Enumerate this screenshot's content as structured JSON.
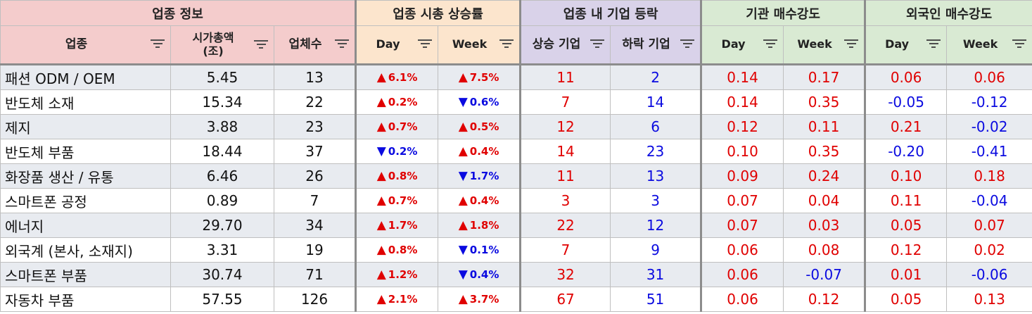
{
  "groups": {
    "info": "업종 정보",
    "cap": "업종 시총 상승률",
    "rise": "업종 내 기업 등락",
    "inst": "기관 매수강도",
    "forn": "외국인 매수강도"
  },
  "columns": {
    "sector": "업종",
    "mcap": "시가총액\n(조)",
    "count": "업체수",
    "cap_day": "Day",
    "cap_week": "Week",
    "up_cnt": "상승 기업",
    "down_cnt": "하락 기업",
    "inst_day": "Day",
    "inst_week": "Week",
    "forn_day": "Day",
    "forn_week": "Week"
  },
  "colors": {
    "up": "#e00000",
    "down": "#0a0ae0"
  },
  "rows": [
    {
      "sector": "패션 ODM / OEM",
      "mcap": "5.45",
      "count": "13",
      "cap_day": "6.1%",
      "cap_day_dir": "up",
      "cap_week": "7.5%",
      "cap_week_dir": "up",
      "up_cnt": "11",
      "down_cnt": "2",
      "inst_day": "0.14",
      "inst_week": "0.17",
      "forn_day": "0.06",
      "forn_week": "0.06"
    },
    {
      "sector": "반도체 소재",
      "mcap": "15.34",
      "count": "22",
      "cap_day": "0.2%",
      "cap_day_dir": "up",
      "cap_week": "0.6%",
      "cap_week_dir": "down",
      "up_cnt": "7",
      "down_cnt": "14",
      "inst_day": "0.14",
      "inst_week": "0.35",
      "forn_day": "-0.05",
      "forn_week": "-0.12"
    },
    {
      "sector": "제지",
      "mcap": "3.88",
      "count": "23",
      "cap_day": "0.7%",
      "cap_day_dir": "up",
      "cap_week": "0.5%",
      "cap_week_dir": "up",
      "up_cnt": "12",
      "down_cnt": "6",
      "inst_day": "0.12",
      "inst_week": "0.11",
      "forn_day": "0.21",
      "forn_week": "-0.02"
    },
    {
      "sector": "반도체 부품",
      "mcap": "18.44",
      "count": "37",
      "cap_day": "0.2%",
      "cap_day_dir": "down",
      "cap_week": "0.4%",
      "cap_week_dir": "up",
      "up_cnt": "14",
      "down_cnt": "23",
      "inst_day": "0.10",
      "inst_week": "0.35",
      "forn_day": "-0.20",
      "forn_week": "-0.41"
    },
    {
      "sector": "화장품 생산 / 유통",
      "mcap": "6.46",
      "count": "26",
      "cap_day": "0.8%",
      "cap_day_dir": "up",
      "cap_week": "1.7%",
      "cap_week_dir": "down",
      "up_cnt": "11",
      "down_cnt": "13",
      "inst_day": "0.09",
      "inst_week": "0.24",
      "forn_day": "0.10",
      "forn_week": "0.18"
    },
    {
      "sector": "스마트폰 공정",
      "mcap": "0.89",
      "count": "7",
      "cap_day": "0.7%",
      "cap_day_dir": "up",
      "cap_week": "0.4%",
      "cap_week_dir": "up",
      "up_cnt": "3",
      "down_cnt": "3",
      "inst_day": "0.07",
      "inst_week": "0.04",
      "forn_day": "0.11",
      "forn_week": "-0.04"
    },
    {
      "sector": "에너지",
      "mcap": "29.70",
      "count": "34",
      "cap_day": "1.7%",
      "cap_day_dir": "up",
      "cap_week": "1.8%",
      "cap_week_dir": "up",
      "up_cnt": "22",
      "down_cnt": "12",
      "inst_day": "0.07",
      "inst_week": "0.03",
      "forn_day": "0.05",
      "forn_week": "0.07"
    },
    {
      "sector": "외국계 (본사, 소재지)",
      "mcap": "3.31",
      "count": "19",
      "cap_day": "0.8%",
      "cap_day_dir": "up",
      "cap_week": "0.1%",
      "cap_week_dir": "down",
      "up_cnt": "7",
      "down_cnt": "9",
      "inst_day": "0.06",
      "inst_week": "0.08",
      "forn_day": "0.12",
      "forn_week": "0.02"
    },
    {
      "sector": "스마트폰 부품",
      "mcap": "30.74",
      "count": "71",
      "cap_day": "1.2%",
      "cap_day_dir": "up",
      "cap_week": "0.4%",
      "cap_week_dir": "down",
      "up_cnt": "32",
      "down_cnt": "31",
      "inst_day": "0.06",
      "inst_week": "-0.07",
      "forn_day": "0.01",
      "forn_week": "-0.06"
    },
    {
      "sector": "자동차 부품",
      "mcap": "57.55",
      "count": "126",
      "cap_day": "2.1%",
      "cap_day_dir": "up",
      "cap_week": "3.7%",
      "cap_week_dir": "up",
      "up_cnt": "67",
      "down_cnt": "51",
      "inst_day": "0.06",
      "inst_week": "0.12",
      "forn_day": "0.05",
      "forn_week": "0.13"
    }
  ]
}
